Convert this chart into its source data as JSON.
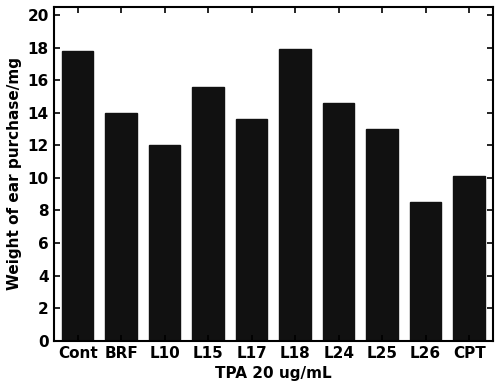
{
  "categories": [
    "Cont",
    "BRF",
    "L10",
    "L15",
    "L17",
    "L18",
    "L24",
    "L25",
    "L26",
    "CPT"
  ],
  "values": [
    17.8,
    14.0,
    12.0,
    15.6,
    13.6,
    17.9,
    14.6,
    13.0,
    8.5,
    10.1
  ],
  "bar_color": "#111111",
  "xlabel": "TPA 20 ug/mL",
  "ylabel": "Weight of ear purchase/mg",
  "ylim": [
    0,
    20.5
  ],
  "yticks": [
    0,
    2,
    4,
    6,
    8,
    10,
    12,
    14,
    16,
    18,
    20
  ],
  "background_color": "#ffffff",
  "xlabel_fontsize": 11,
  "ylabel_fontsize": 11,
  "tick_fontsize": 11,
  "bar_width": 0.72
}
